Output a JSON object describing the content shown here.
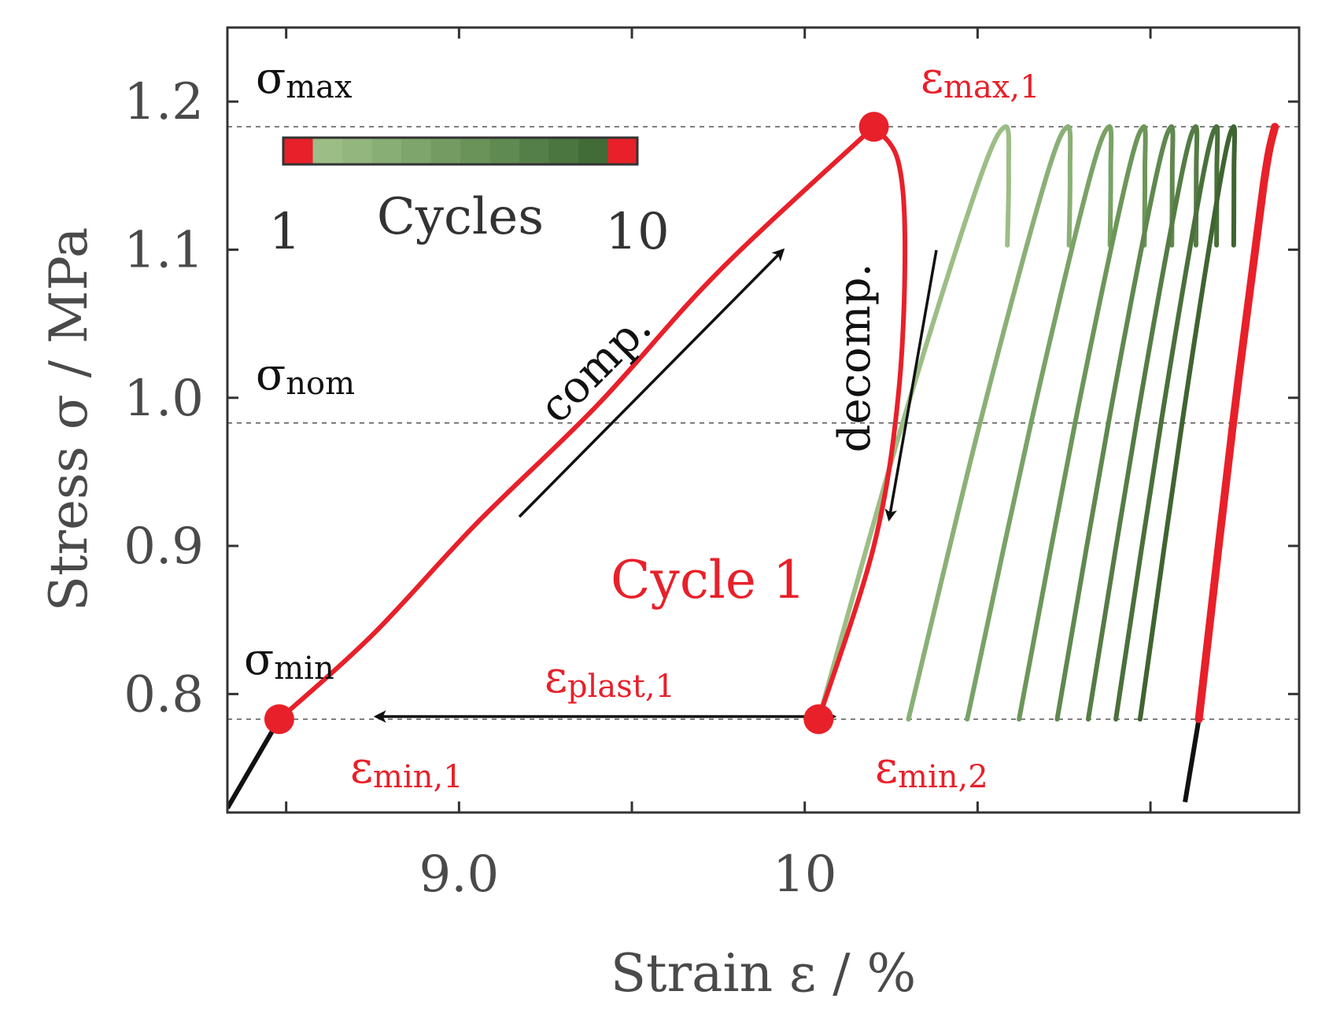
{
  "chart_data": {
    "type": "line",
    "xlabel": "Strain ε / %",
    "ylabel": "Stress σ / MPa",
    "xlim": [
      8.33,
      11.43
    ],
    "ylim": [
      0.72,
      1.25
    ],
    "xticks": [
      8.5,
      9.0,
      9.5,
      10.0,
      10.5,
      11.0
    ],
    "xtick_labels": [
      "",
      "9.0",
      "",
      "10",
      "",
      ""
    ],
    "yticks": [
      0.8,
      0.9,
      1.0,
      1.1,
      1.2
    ],
    "ytick_labels": [
      "0.8",
      "0.9",
      "1.0",
      "1.1",
      "1.2"
    ],
    "reference_lines": [
      {
        "name": "sigma_max",
        "y": 1.183
      },
      {
        "name": "sigma_nom",
        "y": 0.983
      },
      {
        "name": "sigma_min",
        "y": 0.783
      }
    ],
    "level_labels": {
      "sigma_max": {
        "main": "σ",
        "sub": "max"
      },
      "sigma_nom": {
        "main": "σ",
        "sub": "nom"
      },
      "sigma_min": {
        "main": "σ",
        "sub": "min"
      }
    },
    "loading_curve": [
      [
        8.33,
        0.723
      ],
      [
        8.48,
        0.783
      ]
    ],
    "final_unloading_curve": [
      [
        11.1,
        0.727
      ],
      [
        11.14,
        0.783
      ]
    ],
    "cycle_1": {
      "label": "Cycle 1",
      "color": "#e8202a",
      "compression": [
        [
          8.48,
          0.783
        ],
        [
          8.75,
          0.84
        ],
        [
          9.05,
          0.915
        ],
        [
          9.4,
          0.995
        ],
        [
          9.75,
          1.085
        ],
        [
          10.2,
          1.183
        ]
      ],
      "decompression": [
        [
          10.2,
          1.183
        ],
        [
          10.27,
          1.16
        ],
        [
          10.29,
          1.1
        ],
        [
          10.27,
          1.0
        ],
        [
          10.2,
          0.9
        ],
        [
          10.04,
          0.783
        ]
      ]
    },
    "cycles": [
      {
        "cycle": 2,
        "color": "#9dbd86",
        "min_strain": 10.04,
        "max_strain": 10.58,
        "tip_width": 0.02
      },
      {
        "cycle": 3,
        "color": "#8ab076",
        "min_strain": 10.3,
        "max_strain": 10.76,
        "tip_width": 0.015
      },
      {
        "cycle": 4,
        "color": "#7aa266",
        "min_strain": 10.47,
        "max_strain": 10.88,
        "tip_width": 0.01
      },
      {
        "cycle": 5,
        "color": "#6d9659",
        "min_strain": 10.62,
        "max_strain": 10.98,
        "tip_width": 0.008
      },
      {
        "cycle": 6,
        "color": "#60884f",
        "min_strain": 10.73,
        "max_strain": 11.06,
        "tip_width": 0.006
      },
      {
        "cycle": 7,
        "color": "#557c45",
        "min_strain": 10.82,
        "max_strain": 11.13,
        "tip_width": 0.005
      },
      {
        "cycle": 8,
        "color": "#4a703b",
        "min_strain": 10.9,
        "max_strain": 11.19,
        "tip_width": 0.004
      },
      {
        "cycle": 9,
        "color": "#3f6431",
        "min_strain": 10.97,
        "max_strain": 11.24,
        "tip_width": 0.003
      },
      {
        "cycle": 10,
        "color": "#e8202a",
        "min_strain": 11.14,
        "max_strain": 11.36,
        "tip_width": 0
      }
    ],
    "points": [
      {
        "name": "eps-min-1",
        "x": 8.48,
        "y": 0.783,
        "main": "ε",
        "sub": "min,1"
      },
      {
        "name": "eps-max-1",
        "x": 10.2,
        "y": 1.183,
        "main": "ε",
        "sub": "max,1"
      },
      {
        "name": "eps-min-2",
        "x": 10.04,
        "y": 0.783,
        "main": "ε",
        "sub": "min,2"
      }
    ],
    "plastic_strain_label": {
      "main": "ε",
      "sub": "plast,1"
    },
    "annotations": {
      "compression": "comp.",
      "decompression": "decomp."
    },
    "colorbar": {
      "title": "Cycles",
      "min_label": "1",
      "max_label": "10",
      "colors": [
        "#e8202a",
        "#9dbd86",
        "#93b67e",
        "#88ad75",
        "#7ea56b",
        "#749c62",
        "#6a935a",
        "#5f8a51",
        "#557f48",
        "#4b763f",
        "#416c37",
        "#e8202a"
      ]
    }
  }
}
